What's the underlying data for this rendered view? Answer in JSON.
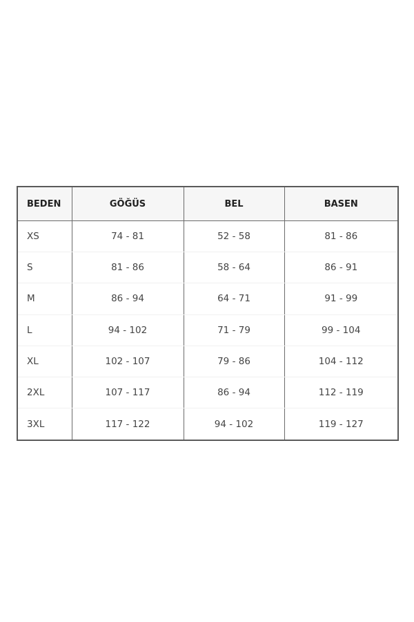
{
  "headers": [
    "BEDEN",
    "GÖĞÜS",
    "BEL",
    "BASEN"
  ],
  "rows": [
    [
      "XS",
      "74 - 81",
      "52 - 58",
      "81 - 86"
    ],
    [
      "S",
      "81 - 86",
      "58 - 64",
      "86 - 91"
    ],
    [
      "M",
      "86 - 94",
      "64 - 71",
      "91 - 99"
    ],
    [
      "L",
      "94 - 102",
      "71 - 79",
      "99 - 104"
    ],
    [
      "XL",
      "102 - 107",
      "79 - 86",
      "104 - 112"
    ],
    [
      "2XL",
      "107 - 117",
      "86 - 94",
      "112 - 119"
    ],
    [
      "3XL",
      "117 - 122",
      "94 - 102",
      "119 - 127"
    ]
  ]
}
